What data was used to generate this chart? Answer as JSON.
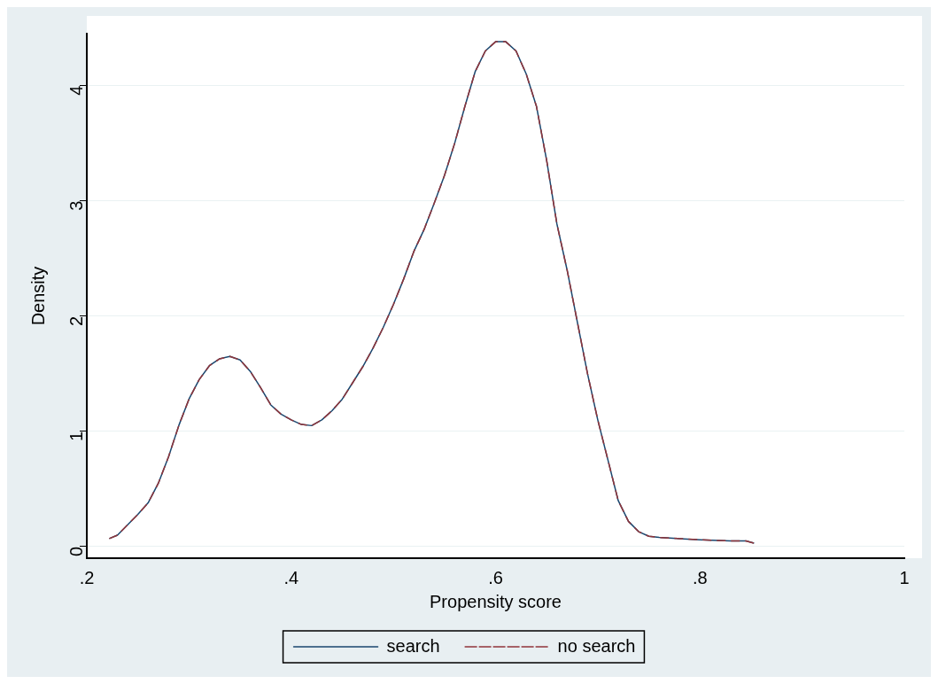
{
  "chart_data": {
    "type": "line",
    "xlabel": "Propensity score",
    "ylabel": "Density",
    "xlim": [
      0.2,
      1
    ],
    "xticks": [
      {
        "value": 0.2,
        "label": ".2"
      },
      {
        "value": 0.4,
        "label": ".4"
      },
      {
        "value": 0.6,
        "label": ".6"
      },
      {
        "value": 0.8,
        "label": ".8"
      },
      1
    ],
    "ylim": [
      -0.1,
      4.45
    ],
    "yticks": [
      0,
      1,
      2,
      3,
      4
    ],
    "grid": "y",
    "legend": "bottom",
    "marker": "none",
    "x": [
      0.222,
      0.23,
      0.25,
      0.26,
      0.27,
      0.28,
      0.29,
      0.3,
      0.31,
      0.32,
      0.33,
      0.34,
      0.35,
      0.36,
      0.37,
      0.38,
      0.39,
      0.4,
      0.41,
      0.42,
      0.43,
      0.44,
      0.45,
      0.46,
      0.47,
      0.48,
      0.49,
      0.5,
      0.51,
      0.52,
      0.53,
      0.54,
      0.55,
      0.56,
      0.57,
      0.58,
      0.59,
      0.6,
      0.61,
      0.62,
      0.63,
      0.64,
      0.65,
      0.66,
      0.67,
      0.68,
      0.69,
      0.7,
      0.71,
      0.72,
      0.73,
      0.74,
      0.75,
      0.76,
      0.78,
      0.8,
      0.83,
      0.845,
      0.853
    ],
    "series": [
      {
        "name": "search",
        "color": "#1a476f",
        "line_style": "solid",
        "values": [
          0.07,
          0.1,
          0.28,
          0.38,
          0.55,
          0.78,
          1.05,
          1.28,
          1.45,
          1.57,
          1.63,
          1.65,
          1.62,
          1.52,
          1.38,
          1.23,
          1.15,
          1.1,
          1.06,
          1.05,
          1.1,
          1.18,
          1.28,
          1.42,
          1.56,
          1.72,
          1.9,
          2.1,
          2.32,
          2.56,
          2.75,
          2.98,
          3.22,
          3.5,
          3.82,
          4.12,
          4.3,
          4.38,
          4.38,
          4.3,
          4.1,
          3.82,
          3.35,
          2.8,
          2.4,
          1.95,
          1.5,
          1.1,
          0.75,
          0.4,
          0.22,
          0.13,
          0.09,
          0.08,
          0.07,
          0.06,
          0.05,
          0.05,
          0.03
        ]
      },
      {
        "name": "no search",
        "color": "#90353b",
        "line_style": "dashed",
        "values": [
          0.07,
          0.1,
          0.28,
          0.38,
          0.55,
          0.78,
          1.05,
          1.28,
          1.45,
          1.57,
          1.63,
          1.65,
          1.62,
          1.52,
          1.38,
          1.23,
          1.15,
          1.1,
          1.06,
          1.05,
          1.1,
          1.18,
          1.28,
          1.42,
          1.56,
          1.72,
          1.9,
          2.1,
          2.32,
          2.56,
          2.75,
          2.98,
          3.22,
          3.5,
          3.82,
          4.12,
          4.3,
          4.38,
          4.38,
          4.3,
          4.1,
          3.82,
          3.35,
          2.8,
          2.4,
          1.95,
          1.5,
          1.1,
          0.75,
          0.4,
          0.22,
          0.13,
          0.09,
          0.08,
          0.07,
          0.06,
          0.05,
          0.05,
          0.03
        ]
      }
    ]
  }
}
